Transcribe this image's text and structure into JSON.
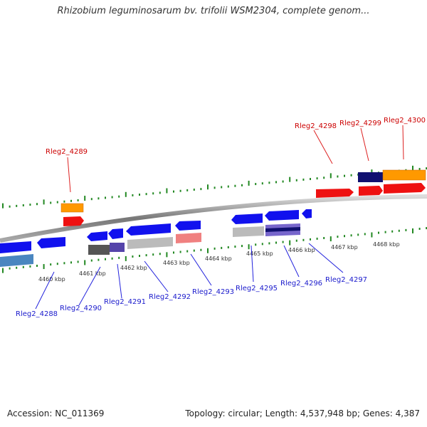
{
  "title": "Rhizobium leguminosarum bv. trifolii WSM2304, complete genom...",
  "footer": {
    "accession": "Accession: NC_011369",
    "summary": "Topology: circular; Length: 4,537,948 bp; Genes: 4,387"
  },
  "scale_labels": [
    "4460 kbp",
    "4461 kbp",
    "4462 kbp",
    "4463 kbp",
    "4464 kbp",
    "4465 kbp",
    "4466 kbp",
    "4467 kbp",
    "4468 kbp"
  ],
  "genes_top": [
    "Rleg2_4289",
    "Rleg2_4298",
    "Rleg2_4299",
    "Rleg2_4300"
  ],
  "genes_bottom": [
    "Rleg2_4288",
    "Rleg2_4290",
    "Rleg2_4291",
    "Rleg2_4292",
    "Rleg2_4293",
    "Rleg2_4295",
    "Rleg2_4296",
    "Rleg2_4297"
  ],
  "colors": {
    "forward_gene": "#ee1111",
    "reverse_gene": "#1111ee",
    "orange": "#ff9900",
    "navy": "#101070",
    "steel": "#4a86c0",
    "grey": "#bbbbbb",
    "dark_grey": "#555555",
    "purple": "#5544aa",
    "pink": "#f08080",
    "tick": "#228822",
    "label_top": "#cc0000",
    "label_bottom": "#1a1acc"
  }
}
